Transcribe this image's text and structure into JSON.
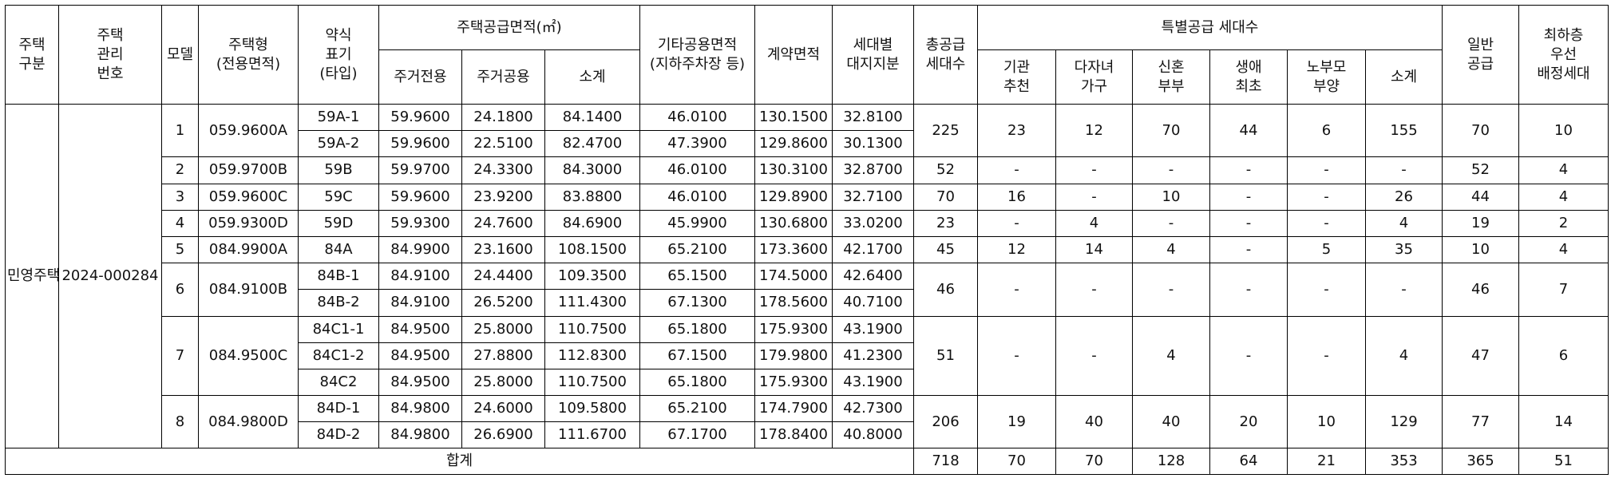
{
  "header": {
    "type_category": [
      "주택",
      "구분"
    ],
    "management_no": [
      "주택",
      "관리",
      "번호"
    ],
    "model": "모델",
    "housing_type": [
      "주택형",
      "(전용면적)"
    ],
    "short_name": [
      "약식",
      "표기",
      "(타입)"
    ],
    "supply_area_group": "주택공급면적(㎡)",
    "residential_exclusive": "주거전용",
    "residential_common": "주거공용",
    "subtotal": "소계",
    "other_common_area": [
      "기타공용면적",
      "(지하주차장 등)"
    ],
    "contract_area": "계약면적",
    "land_share": [
      "세대별",
      "대지지분"
    ],
    "total_supply": [
      "총공급",
      "세대수"
    ],
    "special_supply_group": "특별공급 세대수",
    "institution": [
      "기관",
      "추천"
    ],
    "multi_child": [
      "다자녀",
      "가구"
    ],
    "newlywed": [
      "신혼",
      "부부"
    ],
    "first_life": [
      "생애",
      "최초"
    ],
    "elderly_parent": [
      "노부모",
      "부양"
    ],
    "special_subtotal": "소계",
    "general_supply": [
      "일반",
      "공급"
    ],
    "lowest_floor": [
      "최하층",
      "우선",
      "배정세대"
    ]
  },
  "category": [
    "민영",
    "주택"
  ],
  "management_number": "2024-000284",
  "models": [
    {
      "model": "1",
      "housing_type": "059.9600A",
      "types": [
        {
          "name": "59A-1",
          "excl": "59.9600",
          "comm": "24.1800",
          "sub": "84.1400",
          "other": "46.0100",
          "contract": "130.1500",
          "land": "32.8100"
        },
        {
          "name": "59A-2",
          "excl": "59.9600",
          "comm": "22.5100",
          "sub": "82.4700",
          "other": "47.3900",
          "contract": "129.8600",
          "land": "30.1300"
        }
      ],
      "total": "225",
      "inst": "23",
      "multi": "12",
      "newlywed": "70",
      "first": "44",
      "elderly": "6",
      "sp_sub": "155",
      "general": "70",
      "lowest": "10"
    },
    {
      "model": "2",
      "housing_type": "059.9700B",
      "types": [
        {
          "name": "59B",
          "excl": "59.9700",
          "comm": "24.3300",
          "sub": "84.3000",
          "other": "46.0100",
          "contract": "130.3100",
          "land": "32.8700"
        }
      ],
      "total": "52",
      "inst": "-",
      "multi": "-",
      "newlywed": "-",
      "first": "-",
      "elderly": "-",
      "sp_sub": "-",
      "general": "52",
      "lowest": "4"
    },
    {
      "model": "3",
      "housing_type": "059.9600C",
      "types": [
        {
          "name": "59C",
          "excl": "59.9600",
          "comm": "23.9200",
          "sub": "83.8800",
          "other": "46.0100",
          "contract": "129.8900",
          "land": "32.7100"
        }
      ],
      "total": "70",
      "inst": "16",
      "multi": "-",
      "newlywed": "10",
      "first": "-",
      "elderly": "-",
      "sp_sub": "26",
      "general": "44",
      "lowest": "4"
    },
    {
      "model": "4",
      "housing_type": "059.9300D",
      "types": [
        {
          "name": "59D",
          "excl": "59.9300",
          "comm": "24.7600",
          "sub": "84.6900",
          "other": "45.9900",
          "contract": "130.6800",
          "land": "33.0200"
        }
      ],
      "total": "23",
      "inst": "-",
      "multi": "4",
      "newlywed": "-",
      "first": "-",
      "elderly": "-",
      "sp_sub": "4",
      "general": "19",
      "lowest": "2"
    },
    {
      "model": "5",
      "housing_type": "084.9900A",
      "types": [
        {
          "name": "84A",
          "excl": "84.9900",
          "comm": "23.1600",
          "sub": "108.1500",
          "other": "65.2100",
          "contract": "173.3600",
          "land": "42.1700"
        }
      ],
      "total": "45",
      "inst": "12",
      "multi": "14",
      "newlywed": "4",
      "first": "-",
      "elderly": "5",
      "sp_sub": "35",
      "general": "10",
      "lowest": "4"
    },
    {
      "model": "6",
      "housing_type": "084.9100B",
      "types": [
        {
          "name": "84B-1",
          "excl": "84.9100",
          "comm": "24.4400",
          "sub": "109.3500",
          "other": "65.1500",
          "contract": "174.5000",
          "land": "42.6400"
        },
        {
          "name": "84B-2",
          "excl": "84.9100",
          "comm": "26.5200",
          "sub": "111.4300",
          "other": "67.1300",
          "contract": "178.5600",
          "land": "40.7100"
        }
      ],
      "total": "46",
      "inst": "-",
      "multi": "-",
      "newlywed": "-",
      "first": "-",
      "elderly": "-",
      "sp_sub": "-",
      "general": "46",
      "lowest": "7"
    },
    {
      "model": "7",
      "housing_type": "084.9500C",
      "types": [
        {
          "name": "84C1-1",
          "excl": "84.9500",
          "comm": "25.8000",
          "sub": "110.7500",
          "other": "65.1800",
          "contract": "175.9300",
          "land": "43.1900"
        },
        {
          "name": "84C1-2",
          "excl": "84.9500",
          "comm": "27.8800",
          "sub": "112.8300",
          "other": "67.1500",
          "contract": "179.9800",
          "land": "41.2300"
        },
        {
          "name": "84C2",
          "excl": "84.9500",
          "comm": "25.8000",
          "sub": "110.7500",
          "other": "65.1800",
          "contract": "175.9300",
          "land": "43.1900"
        }
      ],
      "total": "51",
      "inst": "-",
      "multi": "-",
      "newlywed": "4",
      "first": "-",
      "elderly": "-",
      "sp_sub": "4",
      "general": "47",
      "lowest": "6"
    },
    {
      "model": "8",
      "housing_type": "084.9800D",
      "types": [
        {
          "name": "84D-1",
          "excl": "84.9800",
          "comm": "24.6000",
          "sub": "109.5800",
          "other": "65.2100",
          "contract": "174.7900",
          "land": "42.7300"
        },
        {
          "name": "84D-2",
          "excl": "84.9800",
          "comm": "26.6900",
          "sub": "111.6700",
          "other": "67.1700",
          "contract": "178.8400",
          "land": "40.8000"
        }
      ],
      "total": "206",
      "inst": "19",
      "multi": "40",
      "newlywed": "40",
      "first": "20",
      "elderly": "10",
      "sp_sub": "129",
      "general": "77",
      "lowest": "14"
    }
  ],
  "totals": {
    "label": "합계",
    "total": "718",
    "inst": "70",
    "multi": "70",
    "newlywed": "128",
    "first": "64",
    "elderly": "21",
    "sp_sub": "353",
    "general": "365",
    "lowest": "51"
  }
}
